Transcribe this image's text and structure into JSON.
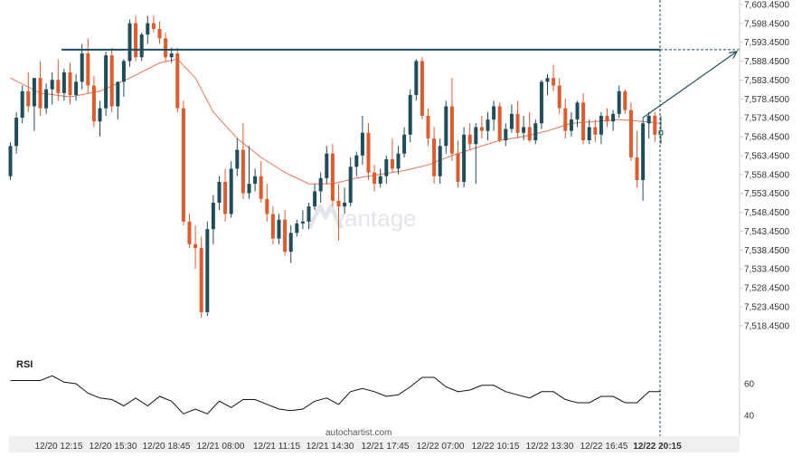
{
  "chart_data": {
    "type": "candlestick",
    "indicator_title": "RSI",
    "watermark": "vantage",
    "source": "autochartist.com",
    "y_axis": {
      "min": 7513.5,
      "max": 7603.45,
      "ticks": [
        "7,603.4500",
        "7,598.4500",
        "7,593.4500",
        "7,588.4500",
        "7,583.4500",
        "7,578.4500",
        "7,573.4500",
        "7,568.4500",
        "7,563.4500",
        "7,558.4500",
        "7,553.4500",
        "7,548.4500",
        "7,543.4500",
        "7,538.4500",
        "7,533.4500",
        "7,528.4500",
        "7,523.4500",
        "7,518.4500"
      ]
    },
    "rsi_axis": {
      "ticks": [
        "60",
        "40"
      ]
    },
    "x_ticks": [
      {
        "label": "12/20 12:15",
        "bold": false
      },
      {
        "label": "12/20 15:30",
        "bold": false
      },
      {
        "label": "12/20 18:45",
        "bold": false
      },
      {
        "label": "12/21 08:00",
        "bold": false
      },
      {
        "label": "12/21 11:15",
        "bold": false
      },
      {
        "label": "12/21 14:30",
        "bold": false
      },
      {
        "label": "12/21 17:45",
        "bold": false
      },
      {
        "label": "12/22 07:00",
        "bold": false
      },
      {
        "label": "12/22 10:15",
        "bold": false
      },
      {
        "label": "12/22 13:30",
        "bold": false
      },
      {
        "label": "12/22 16:45",
        "bold": false
      },
      {
        "label": "12/22 20:15",
        "bold": true
      }
    ],
    "resistance_level": 7591.5,
    "forecast_target": 7591.5,
    "colors": {
      "up": "#1e4d5c",
      "down": "#e05a2b",
      "moving_average": "#e8735a",
      "resistance": "#1e4d5c",
      "rsi": "#111111",
      "grid": "#cccccc"
    },
    "ohlc": [
      [
        7558.0,
        7567.0,
        7557.0,
        7566.0
      ],
      [
        7566.0,
        7575.0,
        7564.0,
        7573.5
      ],
      [
        7573.5,
        7582.0,
        7572.0,
        7580.5
      ],
      [
        7580.5,
        7585.5,
        7575.0,
        7576.5
      ],
      [
        7576.5,
        7584.0,
        7570.0,
        7584.0
      ],
      [
        7584.0,
        7588.5,
        7574.0,
        7576.0
      ],
      [
        7576.0,
        7582.5,
        7574.5,
        7581.0
      ],
      [
        7581.0,
        7585.5,
        7577.0,
        7583.5
      ],
      [
        7583.5,
        7589.0,
        7578.0,
        7580.0
      ],
      [
        7580.0,
        7586.5,
        7578.0,
        7585.5
      ],
      [
        7585.5,
        7588.0,
        7577.0,
        7579.5
      ],
      [
        7579.5,
        7585.0,
        7578.0,
        7583.0
      ],
      [
        7583.0,
        7593.0,
        7581.0,
        7590.5
      ],
      [
        7590.5,
        7594.5,
        7580.0,
        7582.0
      ],
      [
        7582.0,
        7584.5,
        7571.0,
        7572.5
      ],
      [
        7572.5,
        7578.0,
        7568.5,
        7576.0
      ],
      [
        7576.0,
        7591.0,
        7574.0,
        7590.0
      ],
      [
        7590.0,
        7592.0,
        7575.0,
        7576.5
      ],
      [
        7576.5,
        7583.0,
        7573.0,
        7583.0
      ],
      [
        7583.0,
        7589.0,
        7579.0,
        7588.5
      ],
      [
        7588.5,
        7599.5,
        7587.0,
        7598.5
      ],
      [
        7598.5,
        7600.5,
        7588.5,
        7589.5
      ],
      [
        7589.5,
        7596.0,
        7588.5,
        7595.5
      ],
      [
        7595.5,
        7600.5,
        7593.0,
        7598.5
      ],
      [
        7598.5,
        7600.5,
        7596.0,
        7597.0
      ],
      [
        7597.0,
        7599.0,
        7593.0,
        7594.5
      ],
      [
        7594.5,
        7596.0,
        7588.5,
        7589.5
      ],
      [
        7589.5,
        7592.0,
        7588.0,
        7590.5
      ],
      [
        7590.5,
        7592.0,
        7575.0,
        7576.0
      ],
      [
        7576.0,
        7578.0,
        7545.0,
        7546.0
      ],
      [
        7546.0,
        7548.0,
        7539.0,
        7540.0
      ],
      [
        7540.0,
        7545.0,
        7533.5,
        7539.0
      ],
      [
        7539.0,
        7542.0,
        7520.5,
        7522.0
      ],
      [
        7522.0,
        7546.0,
        7521.0,
        7544.0
      ],
      [
        7544.0,
        7553.0,
        7540.0,
        7551.0
      ],
      [
        7551.0,
        7558.0,
        7549.0,
        7556.5
      ],
      [
        7556.5,
        7560.0,
        7546.0,
        7548.0
      ],
      [
        7548.0,
        7562.0,
        7547.0,
        7560.0
      ],
      [
        7560.0,
        7568.0,
        7558.0,
        7565.0
      ],
      [
        7565.0,
        7572.0,
        7552.0,
        7553.5
      ],
      [
        7553.5,
        7566.0,
        7552.0,
        7556.0
      ],
      [
        7556.0,
        7560.0,
        7554.0,
        7558.0
      ],
      [
        7558.0,
        7562.0,
        7551.0,
        7552.0
      ],
      [
        7552.0,
        7556.0,
        7546.0,
        7548.0
      ],
      [
        7548.0,
        7550.0,
        7540.0,
        7541.5
      ],
      [
        7541.5,
        7548.0,
        7540.0,
        7546.5
      ],
      [
        7546.5,
        7549.0,
        7537.0,
        7538.0
      ],
      [
        7538.0,
        7545.0,
        7535.0,
        7543.0
      ],
      [
        7543.0,
        7546.5,
        7542.0,
        7545.5
      ],
      [
        7545.5,
        7549.0,
        7544.0,
        7546.0
      ],
      [
        7546.0,
        7551.0,
        7544.0,
        7550.0
      ],
      [
        7550.0,
        7556.0,
        7549.0,
        7554.0
      ],
      [
        7554.0,
        7559.0,
        7551.0,
        7557.5
      ],
      [
        7557.5,
        7566.0,
        7556.0,
        7564.0
      ],
      [
        7564.0,
        7566.5,
        7550.0,
        7551.5
      ],
      [
        7551.5,
        7556.0,
        7541.0,
        7550.0
      ],
      [
        7550.0,
        7555.0,
        7548.0,
        7551.0
      ],
      [
        7551.0,
        7563.0,
        7550.0,
        7560.5
      ],
      [
        7560.5,
        7564.5,
        7558.0,
        7563.5
      ],
      [
        7563.5,
        7574.0,
        7561.0,
        7569.5
      ],
      [
        7569.5,
        7572.0,
        7557.0,
        7559.0
      ],
      [
        7559.0,
        7561.0,
        7554.0,
        7556.0
      ],
      [
        7556.0,
        7560.0,
        7555.0,
        7558.0
      ],
      [
        7558.0,
        7563.5,
        7556.0,
        7562.5
      ],
      [
        7562.5,
        7568.0,
        7559.0,
        7560.0
      ],
      [
        7560.0,
        7566.0,
        7558.5,
        7564.0
      ],
      [
        7564.0,
        7571.0,
        7563.0,
        7569.0
      ],
      [
        7569.0,
        7581.0,
        7567.0,
        7579.5
      ],
      [
        7579.5,
        7589.0,
        7578.0,
        7588.5
      ],
      [
        7588.5,
        7589.5,
        7573.0,
        7574.0
      ],
      [
        7574.0,
        7576.0,
        7566.0,
        7568.0
      ],
      [
        7568.0,
        7571.0,
        7556.0,
        7558.0
      ],
      [
        7558.0,
        7568.0,
        7556.0,
        7566.0
      ],
      [
        7566.0,
        7578.0,
        7564.0,
        7576.5
      ],
      [
        7576.5,
        7584.0,
        7562.0,
        7564.0
      ],
      [
        7564.0,
        7567.5,
        7555.0,
        7556.5
      ],
      [
        7556.5,
        7571.0,
        7555.0,
        7569.0
      ],
      [
        7569.0,
        7572.0,
        7565.0,
        7566.5
      ],
      [
        7566.5,
        7572.0,
        7556.0,
        7571.0
      ],
      [
        7571.0,
        7574.0,
        7568.0,
        7570.0
      ],
      [
        7570.0,
        7575.0,
        7567.5,
        7573.0
      ],
      [
        7573.0,
        7578.0,
        7570.0,
        7576.5
      ],
      [
        7576.5,
        7577.5,
        7567.0,
        7567.5
      ],
      [
        7567.5,
        7572.0,
        7566.0,
        7570.5
      ],
      [
        7570.5,
        7577.0,
        7569.5,
        7574.5
      ],
      [
        7574.5,
        7578.0,
        7568.0,
        7569.5
      ],
      [
        7569.5,
        7574.0,
        7567.5,
        7571.0
      ],
      [
        7571.0,
        7575.0,
        7567.0,
        7567.5
      ],
      [
        7567.5,
        7573.0,
        7566.5,
        7572.0
      ],
      [
        7572.0,
        7583.5,
        7570.5,
        7583.0
      ],
      [
        7583.0,
        7585.0,
        7579.5,
        7584.0
      ],
      [
        7584.0,
        7587.5,
        7580.5,
        7582.0
      ],
      [
        7582.0,
        7584.0,
        7574.5,
        7576.0
      ],
      [
        7576.0,
        7578.5,
        7568.0,
        7570.0
      ],
      [
        7570.0,
        7575.0,
        7568.5,
        7573.0
      ],
      [
        7573.0,
        7578.0,
        7571.0,
        7577.5
      ],
      [
        7577.5,
        7580.0,
        7566.5,
        7567.5
      ],
      [
        7567.5,
        7573.0,
        7566.5,
        7571.0
      ],
      [
        7571.0,
        7573.0,
        7567.0,
        7569.0
      ],
      [
        7569.0,
        7575.0,
        7566.5,
        7574.0
      ],
      [
        7574.0,
        7576.0,
        7571.0,
        7572.5
      ],
      [
        7572.5,
        7575.5,
        7570.0,
        7574.5
      ],
      [
        7574.5,
        7582.0,
        7573.5,
        7580.5
      ],
      [
        7580.5,
        7581.0,
        7574.5,
        7575.5
      ],
      [
        7575.5,
        7577.5,
        7562.0,
        7563.0
      ],
      [
        7563.0,
        7570.0,
        7555.0,
        7557.0
      ],
      [
        7557.0,
        7573.5,
        7551.5,
        7572.0
      ],
      [
        7572.0,
        7575.0,
        7568.0,
        7574.0
      ],
      [
        7574.0,
        7575.0,
        7567.0,
        7569.0
      ],
      [
        7569.0,
        7574.0,
        7566.5,
        7570.0
      ]
    ],
    "moving_average": [
      [
        0,
        7584.0
      ],
      [
        5,
        7580.0
      ],
      [
        10,
        7579.0
      ],
      [
        15,
        7580.5
      ],
      [
        20,
        7584.0
      ],
      [
        25,
        7588.0
      ],
      [
        28,
        7589.0
      ],
      [
        31,
        7584.0
      ],
      [
        34,
        7575.0
      ],
      [
        38,
        7568.0
      ],
      [
        42,
        7563.0
      ],
      [
        46,
        7559.0
      ],
      [
        50,
        7556.0
      ],
      [
        54,
        7556.0
      ],
      [
        58,
        7557.5
      ],
      [
        62,
        7558.5
      ],
      [
        66,
        7559.5
      ],
      [
        70,
        7561.0
      ],
      [
        74,
        7563.5
      ],
      [
        78,
        7565.5
      ],
      [
        82,
        7567.5
      ],
      [
        86,
        7568.5
      ],
      [
        90,
        7570.0
      ],
      [
        94,
        7572.0
      ],
      [
        98,
        7572.5
      ],
      [
        102,
        7573.0
      ],
      [
        106,
        7572.5
      ],
      [
        109,
        7572.0
      ]
    ],
    "rsi": [
      [
        0,
        62
      ],
      [
        5,
        62
      ],
      [
        7,
        65
      ],
      [
        9,
        61
      ],
      [
        11,
        60
      ],
      [
        13,
        54
      ],
      [
        15,
        51
      ],
      [
        17,
        50
      ],
      [
        19,
        46
      ],
      [
        21,
        51
      ],
      [
        23,
        46
      ],
      [
        25,
        52
      ],
      [
        27,
        49
      ],
      [
        29,
        41
      ],
      [
        31,
        44
      ],
      [
        33,
        41
      ],
      [
        35,
        49
      ],
      [
        37,
        45
      ],
      [
        39,
        50
      ],
      [
        41,
        50
      ],
      [
        43,
        47
      ],
      [
        45,
        44
      ],
      [
        47,
        43
      ],
      [
        49,
        44
      ],
      [
        51,
        49
      ],
      [
        53,
        51
      ],
      [
        55,
        47
      ],
      [
        57,
        55
      ],
      [
        59,
        57
      ],
      [
        61,
        55
      ],
      [
        63,
        52
      ],
      [
        65,
        53
      ],
      [
        67,
        58
      ],
      [
        69,
        64
      ],
      [
        71,
        64
      ],
      [
        73,
        58
      ],
      [
        75,
        55
      ],
      [
        77,
        56
      ],
      [
        79,
        59
      ],
      [
        81,
        59
      ],
      [
        83,
        55
      ],
      [
        85,
        53
      ],
      [
        87,
        51
      ],
      [
        89,
        55
      ],
      [
        91,
        55
      ],
      [
        93,
        50
      ],
      [
        95,
        48
      ],
      [
        97,
        48
      ],
      [
        99,
        52
      ],
      [
        101,
        52
      ],
      [
        103,
        48
      ],
      [
        105,
        48
      ],
      [
        107,
        55
      ],
      [
        109,
        55
      ]
    ]
  }
}
